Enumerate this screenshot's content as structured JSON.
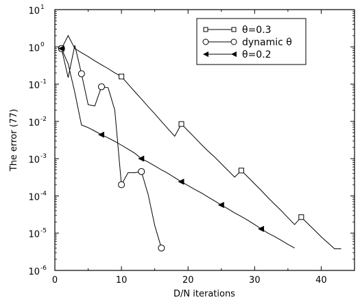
{
  "chart_data": {
    "type": "line",
    "title": "",
    "xlabel": "D/N iterations",
    "ylabel": "The error (77)",
    "xlim": [
      0,
      45
    ],
    "ylim": [
      1e-06,
      10
    ],
    "yscale": "log",
    "x_ticks": [
      0,
      10,
      20,
      30,
      40
    ],
    "x_tick_labels": [
      "0",
      "10",
      "20",
      "30",
      "40"
    ],
    "y_ticks": [
      1e-06,
      1e-05,
      0.0001,
      0.001,
      0.01,
      0.1,
      1,
      10
    ],
    "y_tick_labels": [
      {
        "base": "10",
        "exp": "-6"
      },
      {
        "base": "10",
        "exp": "-5"
      },
      {
        "base": "10",
        "exp": "-4"
      },
      {
        "base": "10",
        "exp": "-3"
      },
      {
        "base": "10",
        "exp": "-2"
      },
      {
        "base": "10",
        "exp": "-1"
      },
      {
        "base": "10",
        "exp": "0"
      },
      {
        "base": "10",
        "exp": "1"
      }
    ],
    "grid": false,
    "legend": "top-right",
    "series": [
      {
        "name": "θ=0.3",
        "marker": "square",
        "x": [
          1,
          2,
          3,
          4,
          5,
          6,
          7,
          8,
          9,
          10,
          11,
          12,
          13,
          14,
          15,
          16,
          17,
          18,
          19,
          20,
          21,
          22,
          23,
          24,
          25,
          26,
          27,
          28,
          29,
          30,
          31,
          32,
          33,
          34,
          35,
          36,
          37,
          38,
          39,
          40,
          41,
          42,
          43
        ],
        "y": [
          0.9,
          2.0,
          0.9,
          0.7,
          0.55,
          0.42,
          0.33,
          0.26,
          0.2,
          0.16,
          0.1,
          0.063,
          0.04,
          0.025,
          0.016,
          0.01,
          0.0063,
          0.004,
          0.0085,
          0.0056,
          0.0037,
          0.0024,
          0.0016,
          0.0011,
          0.00073,
          0.00048,
          0.00032,
          0.00048,
          0.00032,
          0.00021,
          0.00014,
          9e-05,
          6e-05,
          4e-05,
          2.6e-05,
          1.7e-05,
          2.7e-05,
          1.8e-05,
          1.2e-05,
          8e-06,
          5.5e-06,
          3.8e-06,
          3.8e-06
        ],
        "marker_indices": [
          0,
          9,
          18,
          27,
          36
        ]
      },
      {
        "name": "dynamic θ",
        "marker": "circle",
        "x": [
          1,
          2,
          3,
          4,
          5,
          6,
          7,
          8,
          9,
          10,
          11,
          12,
          13,
          14,
          15,
          16
        ],
        "y": [
          0.9,
          0.15,
          1.1,
          0.19,
          0.028,
          0.026,
          0.085,
          0.08,
          0.02,
          0.0002,
          0.00042,
          0.00042,
          0.00045,
          0.00011,
          1.6e-05,
          4e-06
        ],
        "marker_indices": [
          0,
          3,
          6,
          9,
          12,
          15
        ]
      },
      {
        "name": "θ=0.2",
        "marker": "triangle-left",
        "x": [
          1,
          2,
          3,
          4,
          5,
          6,
          7,
          8,
          9,
          10,
          11,
          12,
          13,
          14,
          15,
          16,
          17,
          18,
          19,
          20,
          21,
          22,
          23,
          24,
          25,
          26,
          27,
          28,
          29,
          30,
          31,
          32,
          33,
          34,
          35,
          36
        ],
        "y": [
          0.9,
          0.35,
          0.06,
          0.008,
          0.0068,
          0.0055,
          0.0044,
          0.0036,
          0.0029,
          0.0023,
          0.0018,
          0.0014,
          0.001,
          0.00081,
          0.00064,
          0.0005,
          0.0004,
          0.00031,
          0.00024,
          0.00019,
          0.00015,
          0.00012,
          9.3e-05,
          7.3e-05,
          5.7e-05,
          4.5e-05,
          3.5e-05,
          2.8e-05,
          2.2e-05,
          1.7e-05,
          1.3e-05,
          1e-05,
          8.1e-06,
          6.4e-06,
          5e-06,
          4e-06
        ],
        "marker_indices": [
          0,
          6,
          12,
          18,
          24,
          30
        ]
      }
    ]
  }
}
